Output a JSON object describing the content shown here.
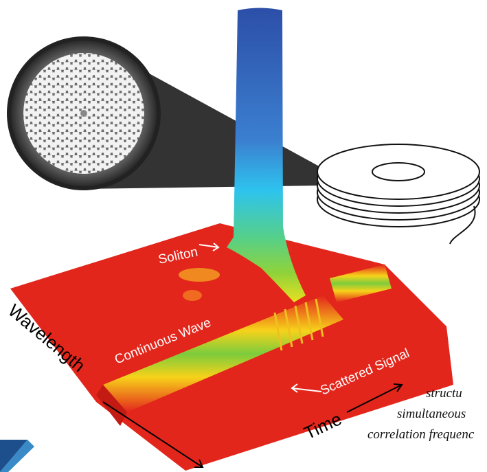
{
  "labels": {
    "soliton": "Soliton",
    "continuous_wave": "Continuous Wave",
    "scattered_signal": "Scattered Signal",
    "wavelength": "Wavelength",
    "time": "Time"
  },
  "caption": {
    "lines": [
      "structu",
      "simultaneous",
      "correlation frequenc"
    ]
  }
}
